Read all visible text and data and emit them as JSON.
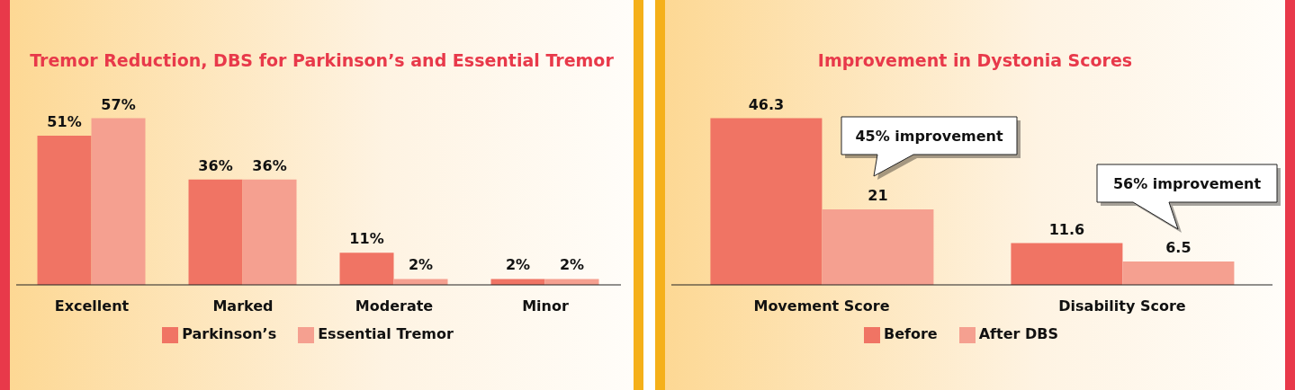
{
  "chart_data": [
    {
      "type": "bar",
      "title": "Tremor Reduction, DBS for Parkinson’s and Essential Tremor",
      "categories": [
        "Excellent",
        "Marked",
        "Moderate",
        "Minor"
      ],
      "series": [
        {
          "name": "Parkinson’s",
          "color": "#f07464",
          "values": [
            51,
            36,
            11,
            2
          ],
          "value_labels": [
            "51%",
            "36%",
            "11%",
            "2%"
          ]
        },
        {
          "name": "Essential Tremor",
          "color": "#f5a090",
          "values": [
            57,
            36,
            2,
            2
          ],
          "value_labels": [
            "57%",
            "36%",
            "2%",
            "2%"
          ]
        }
      ],
      "legend": "bottom"
    },
    {
      "type": "bar",
      "title": "Improvement in Dystonia Scores",
      "categories": [
        "Movement Score",
        "Disability Score"
      ],
      "series": [
        {
          "name": "Before",
          "color": "#f07464",
          "values": [
            46.3,
            11.6
          ]
        },
        {
          "name": "After DBS",
          "color": "#f5a090",
          "values": [
            21,
            6.5
          ]
        }
      ],
      "data_labels": true,
      "legend": "bottom",
      "annotations": [
        "45% improvement",
        "56% improvement"
      ]
    }
  ]
}
